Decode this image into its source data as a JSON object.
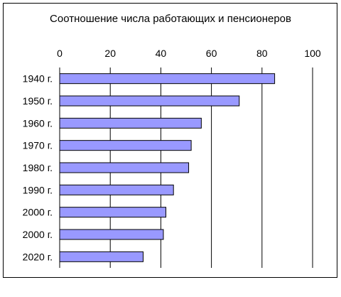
{
  "chart_data": {
    "type": "bar",
    "orientation": "horizontal",
    "title": "Соотношение числа работающих и пенсионеров",
    "categories": [
      "1940 г.",
      "1950 г.",
      "1960 г.",
      "1970 г.",
      "1980 г.",
      "1990 г.",
      "2000 г.",
      "2000 г.",
      "2020 г."
    ],
    "values": [
      85,
      71,
      56,
      52,
      51,
      45,
      42,
      41,
      33
    ],
    "xlim": [
      0,
      100
    ],
    "x_ticks": [
      "0",
      "20",
      "40",
      "60",
      "80",
      "100"
    ],
    "axis_position": "top",
    "grid": true,
    "legend": "none",
    "colors": {
      "bar_fill": "#9999ff",
      "bar_stroke": "#000000",
      "grid": "#000000",
      "frame": "#000000",
      "background": "#ffffff"
    }
  }
}
